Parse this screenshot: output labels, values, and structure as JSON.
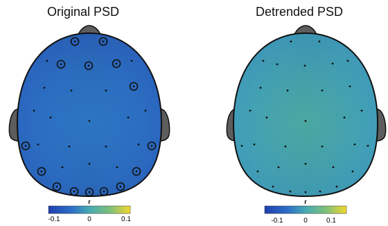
{
  "panels": [
    {
      "title": "Original PSD",
      "map_color_hint": "#2f73c6",
      "colorbar": {
        "label": "r",
        "ticks": [
          "-0.1",
          "0",
          "0.1"
        ]
      }
    },
    {
      "title": "Detrended PSD",
      "map_color_hint": "#46aab2",
      "colorbar": {
        "label": "r",
        "ticks": [
          "-0.1",
          "0",
          "0.1"
        ]
      }
    }
  ],
  "colors": {
    "colormap": [
      "#1f3fb0",
      "#2f73c6",
      "#46aab2",
      "#7fbf7a",
      "#f2d830"
    ],
    "head_outline": "#111111",
    "ears_nose": "#5d5d5d"
  }
}
